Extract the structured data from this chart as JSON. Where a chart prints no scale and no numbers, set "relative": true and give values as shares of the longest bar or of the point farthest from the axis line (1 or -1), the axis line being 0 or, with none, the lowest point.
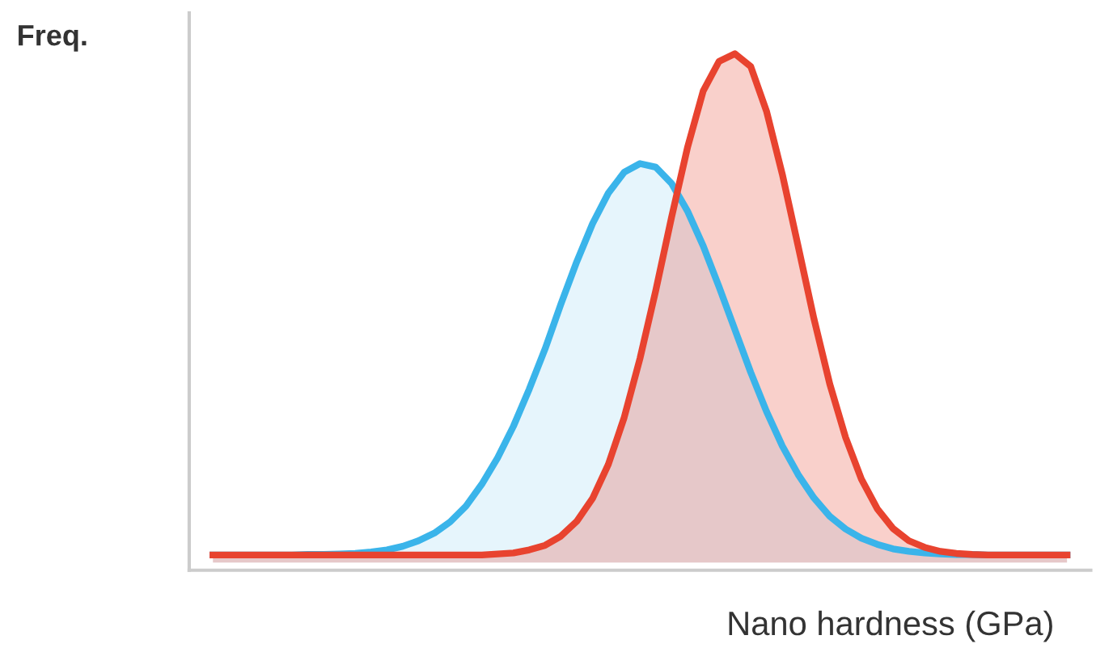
{
  "chart_data": {
    "type": "area",
    "relative": true,
    "xlabel": "Nano hardness (GPa)",
    "ylabel": "Freq.",
    "categories": [
      null,
      null,
      null,
      null,
      null,
      null,
      null,
      null,
      null,
      null,
      null,
      null,
      null,
      null,
      null,
      null,
      null,
      null,
      null,
      null,
      null,
      null,
      null,
      null,
      null,
      null,
      null,
      null,
      null,
      null,
      null,
      null,
      null,
      null,
      null,
      null,
      null,
      null,
      null,
      null,
      null,
      null,
      null,
      null,
      null,
      null,
      null,
      null,
      null,
      null,
      null,
      null,
      null,
      null,
      null
    ],
    "series": [
      {
        "color": "#3ab4ea",
        "values": [
          0.015,
          0.015,
          0.015,
          0.015,
          0.015,
          0.015,
          0.016,
          0.016,
          0.017,
          0.018,
          0.021,
          0.025,
          0.032,
          0.043,
          0.058,
          0.08,
          0.111,
          0.154,
          0.206,
          0.268,
          0.341,
          0.42,
          0.508,
          0.591,
          0.666,
          0.726,
          0.767,
          0.784,
          0.777,
          0.745,
          0.691,
          0.622,
          0.542,
          0.458,
          0.374,
          0.297,
          0.229,
          0.173,
          0.127,
          0.091,
          0.066,
          0.048,
          0.036,
          0.027,
          0.022,
          0.019,
          0.017,
          0.016,
          0.016,
          0.015,
          0.015,
          0.015,
          0.015,
          0.015,
          0.015
        ]
      },
      {
        "color": "#e8432f",
        "values": [
          0.015,
          0.015,
          0.015,
          0.015,
          0.015,
          0.015,
          0.015,
          0.015,
          0.015,
          0.015,
          0.015,
          0.015,
          0.015,
          0.015,
          0.015,
          0.015,
          0.015,
          0.015,
          0.017,
          0.019,
          0.025,
          0.034,
          0.052,
          0.081,
          0.126,
          0.193,
          0.285,
          0.401,
          0.535,
          0.679,
          0.815,
          0.927,
          0.985,
          1.0,
          0.975,
          0.887,
          0.763,
          0.622,
          0.479,
          0.351,
          0.246,
          0.164,
          0.106,
          0.067,
          0.043,
          0.03,
          0.022,
          0.018,
          0.016,
          0.015,
          0.015,
          0.015,
          0.015,
          0.015,
          0.015
        ]
      }
    ]
  }
}
